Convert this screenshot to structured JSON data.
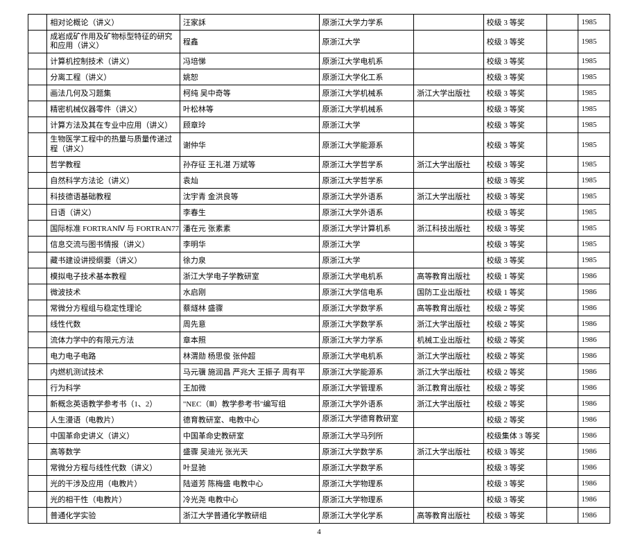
{
  "page_number": "4",
  "columns": {
    "widths_class": [
      "col0",
      "col1",
      "col2",
      "col3",
      "col4",
      "col5",
      "col6",
      "col7"
    ]
  },
  "rows": [
    {
      "c": [
        "",
        "相对论概论（讲义）",
        "汪家訸",
        "原浙江大学力学系",
        "",
        "校级 3 等奖",
        "",
        "1985"
      ]
    },
    {
      "c": [
        "",
        "成岩成矿作用及矿物标型特征的研究和应用（讲义）",
        "程鑫",
        "原浙江大学",
        "",
        "校级 3 等奖",
        "",
        "1985"
      ],
      "wrap": true
    },
    {
      "c": [
        "",
        "计算机控制技术（讲义）",
        "冯培悌",
        "原浙江大学电机系",
        "",
        "校级 3 等奖",
        "",
        "1985"
      ]
    },
    {
      "c": [
        "",
        "分离工程（讲义）",
        "姚恕",
        "原浙江大学化工系",
        "",
        "校级 3 等奖",
        "",
        "1985"
      ]
    },
    {
      "c": [
        "",
        "画法几何及习题集",
        "柯纯 吴中奇等",
        "原浙江大学机械系",
        "浙江大学出版社",
        "校级 3 等奖",
        "",
        "1985"
      ]
    },
    {
      "c": [
        "",
        "精密机械仪器零件（讲义）",
        "叶松林等",
        "原浙江大学机械系",
        "",
        "校级 3 等奖",
        "",
        "1985"
      ]
    },
    {
      "c": [
        "",
        "计算方法及其在专业中应用（讲义）",
        "顾章玲",
        "原浙江大学",
        "",
        "校级 3 等奖",
        "",
        "1985"
      ]
    },
    {
      "c": [
        "",
        "生物医学工程中的热量与质量传递过程（讲义）",
        "谢仲华",
        "原浙江大学能源系",
        "",
        "校级 3 等奖",
        "",
        "1985"
      ],
      "wrap": true
    },
    {
      "c": [
        "",
        "哲学教程",
        "孙存征 王礼湛 万斌等",
        "原浙江大学哲学系",
        "浙江大学出版社",
        "校级 3 等奖",
        "",
        "1985"
      ]
    },
    {
      "c": [
        "",
        "自然科学方法论（讲义）",
        "袁灿",
        "原浙江大学哲学系",
        "",
        "校级 3 等奖",
        "",
        "1985"
      ]
    },
    {
      "c": [
        "",
        "科技德语基础教程",
        "沈宇青 金洪良等",
        "原浙江大学外语系",
        "浙江大学出版社",
        "校级 3 等奖",
        "",
        "1985"
      ]
    },
    {
      "c": [
        "",
        "日语（讲义）",
        "李春生",
        "原浙江大学外语系",
        "",
        "校级 3 等奖",
        "",
        "1985"
      ]
    },
    {
      "c": [
        "",
        "国际标准 FORTRANⅣ 与 FORTRAN77",
        "潘在元 张素素",
        "原浙江大学计算机系",
        "浙江科技出版社",
        "校级 3 等奖",
        "",
        "1985"
      ]
    },
    {
      "c": [
        "",
        "信息交流与图书情报（讲义）",
        "李明华",
        "原浙江大学",
        "",
        "校级 3 等奖",
        "",
        "1985"
      ]
    },
    {
      "c": [
        "",
        "藏书建设讲授纲要（讲义）",
        "徐力泉",
        "原浙江大学",
        "",
        "校级 3 等奖",
        "",
        "1985"
      ]
    },
    {
      "c": [
        "",
        "模拟电子技术基本教程",
        "浙江大学电子学教研室",
        "原浙江大学电机系",
        "高等教育出版社",
        "校级 1 等奖",
        "",
        "1986"
      ]
    },
    {
      "c": [
        "",
        "微波技术",
        "水启刚",
        "原浙江大学信电系",
        "国防工业出版社",
        "校级 1 等奖",
        "",
        "1986"
      ]
    },
    {
      "c": [
        "",
        "常微分方程组与稳定性理论",
        "蔡燧林 盛骤",
        "原浙江大学数学系",
        "高等教育出版社",
        "校级 2 等奖",
        "",
        "1986"
      ]
    },
    {
      "c": [
        "",
        "线性代数",
        "周先意",
        "原浙江大学数学系",
        "浙江大学出版社",
        "校级 2 等奖",
        "",
        "1986"
      ]
    },
    {
      "c": [
        "",
        "流体力学中的有限元方法",
        "章本照",
        "原浙江大学力学系",
        "机械工业出版社",
        "校级 2 等奖",
        "",
        "1986"
      ]
    },
    {
      "c": [
        "",
        "电力电子电路",
        "林渭勋 杨思俊 张仲超",
        "原浙江大学电机系",
        "浙江大学出版社",
        "校级 2 等奖",
        "",
        "1986"
      ]
    },
    {
      "c": [
        "",
        "内燃机测试技术",
        "马元骥 施润昌 严兆大 王振子 周有平",
        "原浙江大学能源系",
        "浙江大学出版社",
        "校级 2 等奖",
        "",
        "1986"
      ]
    },
    {
      "c": [
        "",
        "行为科学",
        "王加微",
        "原浙江大学管理系",
        "浙江教育出版社",
        "校级 2 等奖",
        "",
        "1986"
      ]
    },
    {
      "c": [
        "",
        "新概念英语教学参考书（1、2）",
        "\"NEC（Ⅲ）教学参考书\"编写组",
        "原浙江大学外语系",
        "浙江大学出版社",
        "校级 2 等奖",
        "",
        "1986"
      ]
    },
    {
      "c": [
        "",
        "人生漫语（电教片）",
        "德育教研室、电教中心",
        "原浙江大学德育教研室",
        "",
        "校级 2 等奖",
        "",
        "1986"
      ],
      "wrap3": true
    },
    {
      "c": [
        "",
        "中国革命史讲义（讲义）",
        "中国革命史教研室",
        "原浙江大学马列所",
        "",
        "校级集体 3 等奖",
        "",
        "1986"
      ]
    },
    {
      "c": [
        "",
        "高等数学",
        "盛骤 吴迪光 张光天",
        "原浙江大学数学系",
        "浙江大学出版社",
        "校级 3 等奖",
        "",
        "1986"
      ]
    },
    {
      "c": [
        "",
        "常微分方程与线性代数（讲义）",
        "叶显驰",
        "原浙江大学数学系",
        "",
        "校级 3 等奖",
        "",
        "1986"
      ]
    },
    {
      "c": [
        "",
        "光的干涉及应用（电教片）",
        "陆道芳 陈梅盛 电教中心",
        "原浙江大学物理系",
        "",
        "校级 3 等奖",
        "",
        "1986"
      ]
    },
    {
      "c": [
        "",
        "光的相干性（电教片）",
        "冷光尧 电教中心",
        "原浙江大学物理系",
        "",
        "校级 3 等奖",
        "",
        "1986"
      ]
    },
    {
      "c": [
        "",
        "普通化学实验",
        "浙江大学普通化学教研组",
        "原浙江大学化学系",
        "高等教育出版社",
        "校级 3 等奖",
        "",
        "1986"
      ]
    }
  ]
}
